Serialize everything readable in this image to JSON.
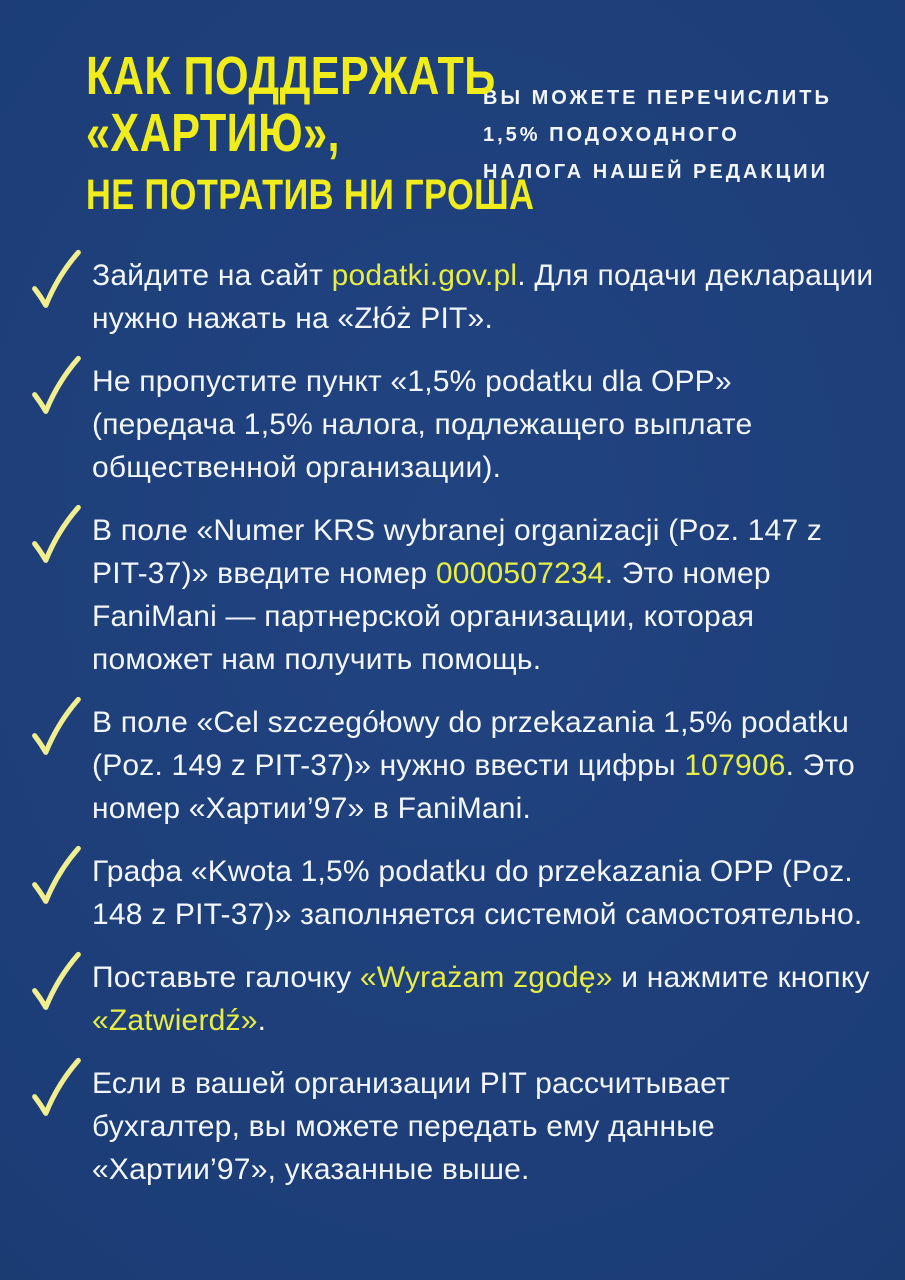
{
  "page": {
    "language": "ru",
    "colors": {
      "background": "#1c3d77",
      "background_light": "#214380",
      "background_dark": "#16315f",
      "heading_yellow": "#f1ed1c",
      "highlight_yellow": "#e7ed43",
      "checkmark_yellow": "#f0ee8e",
      "body_text": "#f3f6f9"
    }
  },
  "header": {
    "title_lines": [
      "КАК ПОДДЕРЖАТЬ",
      "«ХАРТИЮ»,",
      "НЕ ПОТРАТИВ НИ ГРОША"
    ],
    "subtitle_lines": [
      "ВЫ МОЖЕТЕ ПЕРЕЧИСЛИТЬ",
      "1,5% ПОДОХОДНОГО",
      "НАЛОГА НАШЕЙ РЕДАКЦИИ"
    ]
  },
  "checklist": {
    "bullet_icon": "hand-drawn-checkmark",
    "items": [
      {
        "segments": [
          {
            "text": "Зайдите на сайт ",
            "highlight": false
          },
          {
            "text": "podatki.gov.pl",
            "highlight": true
          },
          {
            "text": ". Для подачи декларации нужно нажать на «Złóż PIT».",
            "highlight": false
          }
        ]
      },
      {
        "segments": [
          {
            "text": "Не пропустите пункт «1,5% podatku dla OPP» (передача 1,5% налога, подлежащего выплате общественной организации).",
            "highlight": false
          }
        ]
      },
      {
        "segments": [
          {
            "text": "В поле «Numer KRS wybranej organizacji (Poz. 147 z PIT-37)» введите номер ",
            "highlight": false
          },
          {
            "text": "0000507234",
            "highlight": true
          },
          {
            "text": ". Это номер FaniMani — партнерской организации, которая поможет нам получить помощь.",
            "highlight": false
          }
        ]
      },
      {
        "segments": [
          {
            "text": "В поле «Cel szczegółowy do przekazania 1,5% podatku (Poz. 149 z PIT-37)» нужно ввести цифры ",
            "highlight": false
          },
          {
            "text": "107906",
            "highlight": true
          },
          {
            "text": ". Это номер «Хартии’97» в FaniMani.",
            "highlight": false
          }
        ]
      },
      {
        "segments": [
          {
            "text": "Графа «Kwota 1,5% podatku do przekazania OPP (Poz. 148 z PIT-37)» заполняется системой самостоятельно.",
            "highlight": false
          }
        ]
      },
      {
        "segments": [
          {
            "text": "Поставьте галочку ",
            "highlight": false
          },
          {
            "text": "«Wyrażam zgodę»",
            "highlight": true
          },
          {
            "text": " и нажмите кнопку ",
            "highlight": false
          },
          {
            "text": "«Zatwierdź»",
            "highlight": true
          },
          {
            "text": ".",
            "highlight": false
          }
        ]
      },
      {
        "segments": [
          {
            "text": "Если в вашей организации PIT рассчитывает бухгалтер, вы можете передать ему данные «Хартии’97», указанные выше.",
            "highlight": false
          }
        ]
      }
    ]
  }
}
